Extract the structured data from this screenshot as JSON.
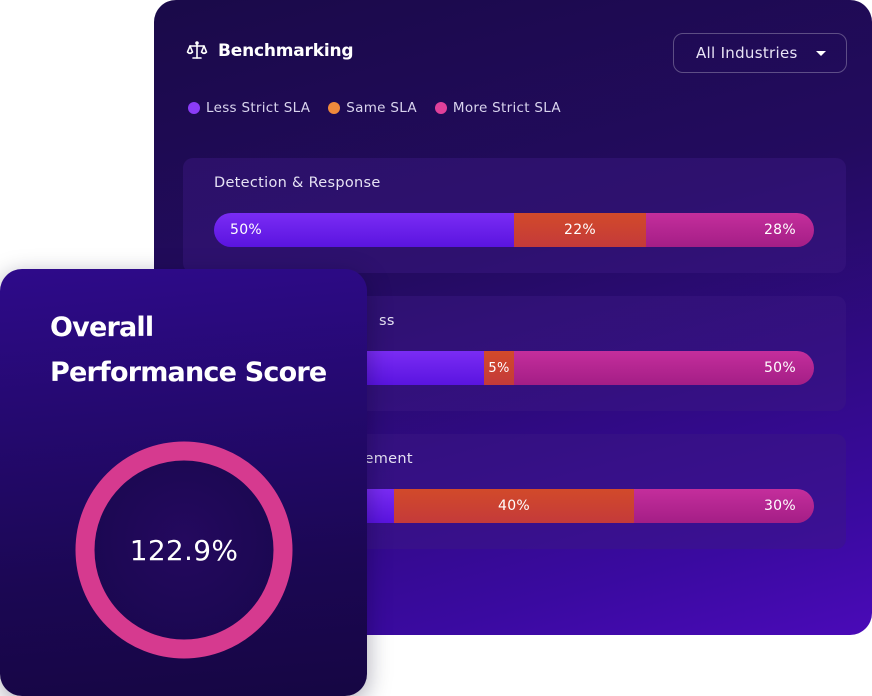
{
  "benchmarking": {
    "title": "Benchmarking",
    "icon": "scale-icon",
    "industry_select": {
      "value": "All Industries",
      "icon": "chevron-down-icon"
    },
    "legend": [
      {
        "label": "Less Strict SLA",
        "color": "#8b3cf7"
      },
      {
        "label": "Same SLA",
        "color": "#f08a3c"
      },
      {
        "label": "More Strict SLA",
        "color": "#e0409a"
      }
    ],
    "metrics": [
      {
        "label": "Detection & Response",
        "segments": {
          "less": {
            "value": 50,
            "label": "50%"
          },
          "same": {
            "value": 22,
            "label": "22%"
          },
          "more": {
            "value": 28,
            "label": "28%"
          }
        }
      },
      {
        "label": "ss",
        "segments": {
          "less": {
            "value": 45,
            "label": ""
          },
          "same": {
            "value": 5,
            "label": "5%"
          },
          "more": {
            "value": 50,
            "label": "50%"
          }
        }
      },
      {
        "label": "gement",
        "segments": {
          "less": {
            "value": 30,
            "label": ""
          },
          "same": {
            "value": 40,
            "label": "40%"
          },
          "more": {
            "value": 30,
            "label": "30%"
          }
        }
      }
    ]
  },
  "score_card": {
    "title_line1": "Overall",
    "title_line2": "Performance Score",
    "value": "122.9%",
    "ring_color": "#d63a8f"
  }
}
